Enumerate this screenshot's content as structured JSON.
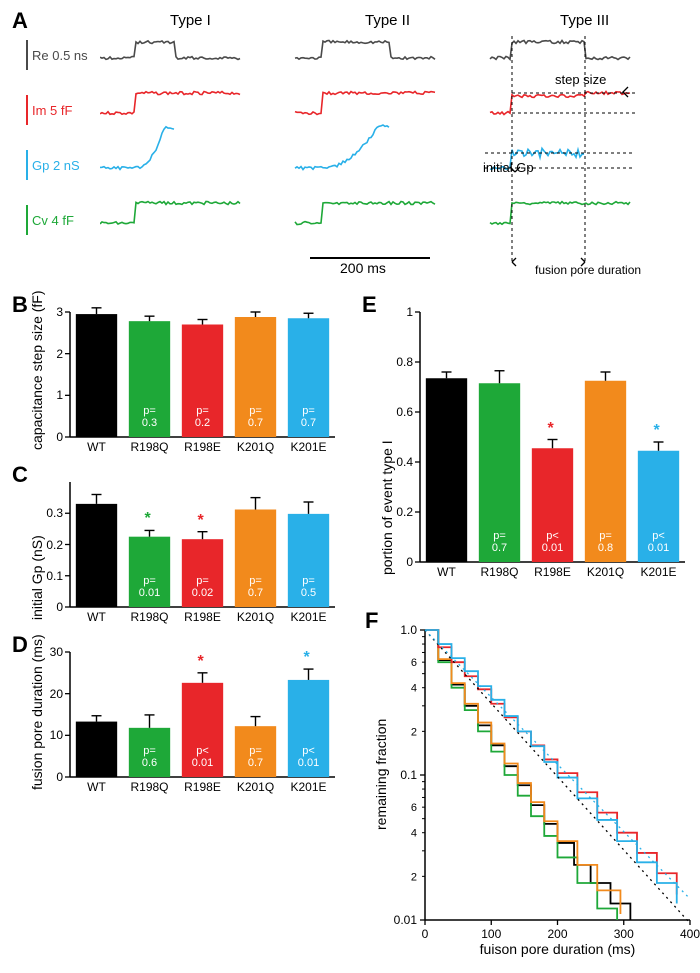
{
  "colors": {
    "wt": "#000000",
    "r198q": "#1ea838",
    "r198e": "#e8262a",
    "k201q": "#f28a1c",
    "k201e": "#29b0e8",
    "trace_re": "#4a4a4a",
    "trace_im": "#e8262a",
    "trace_gp": "#29b0e8",
    "trace_cv": "#1ea838",
    "axis": "#000000"
  },
  "panelA": {
    "label": "A",
    "types": [
      "Type I",
      "Type II",
      "Type III"
    ],
    "traces": [
      {
        "name": "Re 0.5 ns",
        "color_key": "trace_re"
      },
      {
        "name": "Im 5 fF",
        "color_key": "trace_im"
      },
      {
        "name": "Gp 2 nS",
        "color_key": "trace_gp"
      },
      {
        "name": "Cv 4 fF",
        "color_key": "trace_cv"
      }
    ],
    "scalebar": "200 ms",
    "anno": {
      "step_size": "step size",
      "initial_gp": "initial Gp",
      "fpd": "fusion pore duration"
    }
  },
  "barCommon": {
    "categories": [
      "WT",
      "R198Q",
      "R198E",
      "K201Q",
      "K201E"
    ],
    "cat_colors": [
      "wt",
      "r198q",
      "r198e",
      "k201q",
      "k201e"
    ]
  },
  "panelB": {
    "label": "B",
    "ylabel": "capacitance step size (fF)",
    "ylim": [
      0,
      3
    ],
    "yticks": [
      0,
      1,
      2,
      3
    ],
    "values": [
      2.95,
      2.78,
      2.7,
      2.88,
      2.85
    ],
    "errors": [
      0.15,
      0.12,
      0.12,
      0.12,
      0.12
    ],
    "pvals": [
      "",
      "p=\n0.3",
      "p=\n0.2",
      "p=\n0.7",
      "p=\n0.7"
    ],
    "stars": []
  },
  "panelC": {
    "label": "C",
    "ylabel": "initial Gp (nS)",
    "ylim": [
      0,
      0.4
    ],
    "yticks": [
      0,
      0.1,
      0.2,
      0.3
    ],
    "values": [
      0.33,
      0.225,
      0.217,
      0.312,
      0.298
    ],
    "errors": [
      0.03,
      0.02,
      0.024,
      0.038,
      0.038
    ],
    "pvals": [
      "",
      "p=\n0.01",
      "p=\n0.02",
      "p=\n0.7",
      "p=\n0.5"
    ],
    "stars": [
      {
        "idx": 1,
        "color_key": "r198q"
      },
      {
        "idx": 2,
        "color_key": "r198e"
      }
    ]
  },
  "panelD": {
    "label": "D",
    "ylabel": "fusion pore duration (ms)",
    "ylim": [
      0,
      30
    ],
    "yticks": [
      0,
      10,
      20,
      30
    ],
    "values": [
      13.3,
      11.8,
      22.6,
      12.2,
      23.3
    ],
    "errors": [
      1.4,
      3.1,
      2.4,
      2.3,
      2.6
    ],
    "pvals": [
      "",
      "p=\n0.6",
      "p<\n0.01",
      "p=\n0.7",
      "p<\n0.01"
    ],
    "stars": [
      {
        "idx": 2,
        "color_key": "r198e"
      },
      {
        "idx": 4,
        "color_key": "k201e"
      }
    ]
  },
  "panelE": {
    "label": "E",
    "ylabel": "portion of event type I",
    "ylim": [
      0,
      1
    ],
    "yticks": [
      0,
      0.2,
      0.4,
      0.6,
      0.8,
      1
    ],
    "values": [
      0.735,
      0.715,
      0.455,
      0.725,
      0.445
    ],
    "errors": [
      0.025,
      0.05,
      0.035,
      0.035,
      0.035
    ],
    "pvals": [
      "",
      "p=\n0.7",
      "p<\n0.01",
      "p=\n0.8",
      "p<\n0.01"
    ],
    "stars": [
      {
        "idx": 2,
        "color_key": "r198e"
      },
      {
        "idx": 4,
        "color_key": "k201e"
      }
    ]
  },
  "panelF": {
    "label": "F",
    "ylabel": "remaining fraction",
    "xlabel": "fuison pore duration (ms)",
    "xlim": [
      0,
      400
    ],
    "xticks": [
      0,
      100,
      200,
      300,
      400
    ],
    "ylim": [
      0.01,
      1.0
    ],
    "ylog": true,
    "yticks": [
      0.01,
      0.1,
      1.0
    ],
    "minor_ylabels": {
      "2a": 2,
      "4": 4,
      "6": 6,
      "2b": 2
    },
    "series": [
      {
        "color_key": "wt",
        "dash": false,
        "pts": [
          [
            0,
            1.0
          ],
          [
            20,
            0.62
          ],
          [
            40,
            0.42
          ],
          [
            60,
            0.3
          ],
          [
            80,
            0.22
          ],
          [
            100,
            0.16
          ],
          [
            120,
            0.115
          ],
          [
            140,
            0.085
          ],
          [
            160,
            0.062
          ],
          [
            180,
            0.046
          ],
          [
            200,
            0.034
          ],
          [
            225,
            0.024
          ],
          [
            250,
            0.018
          ],
          [
            280,
            0.013
          ],
          [
            310,
            0.01
          ]
        ]
      },
      {
        "color_key": "r198q",
        "dash": false,
        "pts": [
          [
            0,
            1.0
          ],
          [
            20,
            0.6
          ],
          [
            40,
            0.4
          ],
          [
            60,
            0.28
          ],
          [
            80,
            0.2
          ],
          [
            100,
            0.145
          ],
          [
            120,
            0.1
          ],
          [
            140,
            0.072
          ],
          [
            160,
            0.052
          ],
          [
            180,
            0.038
          ],
          [
            200,
            0.027
          ],
          [
            230,
            0.018
          ],
          [
            260,
            0.012
          ],
          [
            290,
            0.01
          ]
        ]
      },
      {
        "color_key": "k201q",
        "dash": false,
        "pts": [
          [
            0,
            1.0
          ],
          [
            20,
            0.63
          ],
          [
            40,
            0.43
          ],
          [
            60,
            0.31
          ],
          [
            80,
            0.23
          ],
          [
            100,
            0.165
          ],
          [
            120,
            0.12
          ],
          [
            140,
            0.088
          ],
          [
            160,
            0.065
          ],
          [
            180,
            0.048
          ],
          [
            200,
            0.035
          ],
          [
            230,
            0.024
          ],
          [
            260,
            0.016
          ],
          [
            295,
            0.011
          ]
        ]
      },
      {
        "color_key": "r198e",
        "dash": false,
        "pts": [
          [
            0,
            1.0
          ],
          [
            20,
            0.76
          ],
          [
            40,
            0.6
          ],
          [
            60,
            0.48
          ],
          [
            80,
            0.39
          ],
          [
            100,
            0.31
          ],
          [
            120,
            0.25
          ],
          [
            140,
            0.2
          ],
          [
            160,
            0.16
          ],
          [
            180,
            0.128
          ],
          [
            200,
            0.103
          ],
          [
            230,
            0.076
          ],
          [
            260,
            0.055
          ],
          [
            290,
            0.04
          ],
          [
            320,
            0.029
          ],
          [
            350,
            0.021
          ],
          [
            380,
            0.015
          ]
        ]
      },
      {
        "color_key": "k201e",
        "dash": false,
        "pts": [
          [
            0,
            1.0
          ],
          [
            20,
            0.8
          ],
          [
            40,
            0.64
          ],
          [
            60,
            0.52
          ],
          [
            80,
            0.41
          ],
          [
            100,
            0.33
          ],
          [
            120,
            0.255
          ],
          [
            140,
            0.2
          ],
          [
            160,
            0.158
          ],
          [
            180,
            0.123
          ],
          [
            200,
            0.096
          ],
          [
            230,
            0.069
          ],
          [
            260,
            0.049
          ],
          [
            290,
            0.035
          ],
          [
            320,
            0.025
          ],
          [
            350,
            0.018
          ],
          [
            380,
            0.013
          ]
        ]
      },
      {
        "color_key": "wt",
        "dash": true,
        "pts": [
          [
            0,
            1.0
          ],
          [
            400,
            0.0095
          ]
        ]
      },
      {
        "color_key": "k201e",
        "dash": true,
        "pts": [
          [
            0,
            1.0
          ],
          [
            400,
            0.014
          ]
        ]
      }
    ]
  }
}
